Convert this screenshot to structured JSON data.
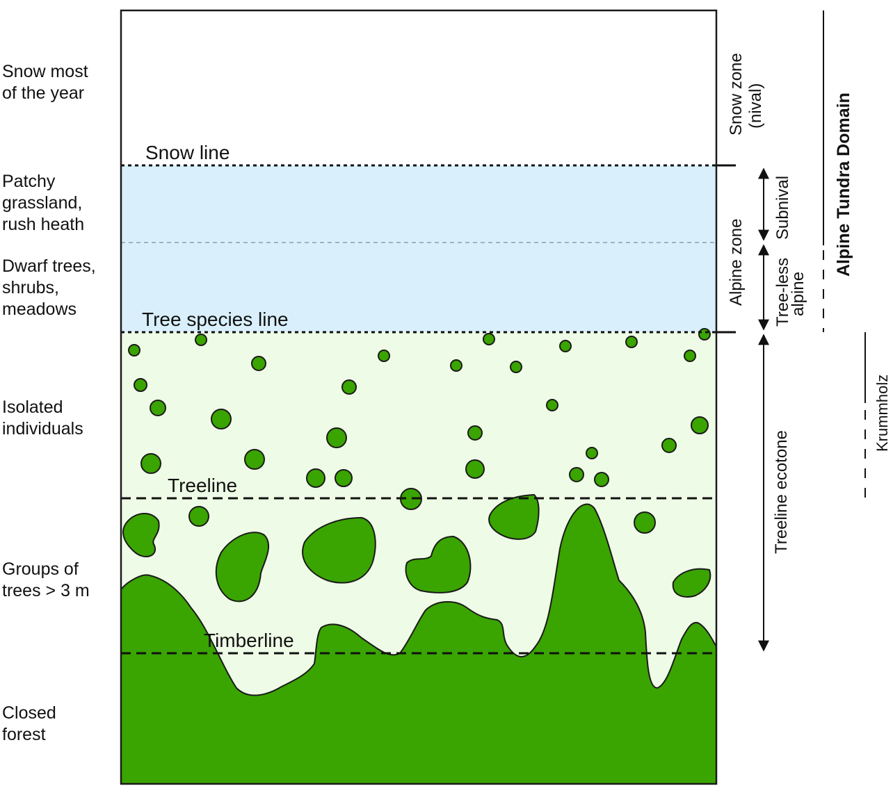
{
  "left_labels": {
    "snow": "Snow most\nof the year",
    "patchy": "Patchy\ngrassland,\nrush heath",
    "dwarf": "Dwarf trees,\nshrubs,\nmeadows",
    "isolated": "Isolated\nindividuals",
    "groups": "Groups of\ntrees > 3 m",
    "closed": "Closed\nforest"
  },
  "lines": {
    "snow_line": "Snow line",
    "tree_species_line": "Tree species line",
    "treeline": "Treeline",
    "timberline": "Timberline"
  },
  "zones": {
    "snow_zone_1": "Snow zone",
    "snow_zone_2": "(nival)",
    "alpine_zone": "Alpine zone",
    "subnival": "Subnival",
    "treeless_1": "Tree-less",
    "treeless_2": "alpine",
    "treeline_ecotone": "Treeline ecotone"
  },
  "domains": {
    "alpine_tundra": "Alpine Tundra Domain",
    "krummholz": "Krummholz"
  },
  "colors": {
    "alpine_band": "#d9f0fc",
    "ecotone_band": "#eefbe6",
    "forest": "#3aa400",
    "outline": "#1a1a1a"
  }
}
